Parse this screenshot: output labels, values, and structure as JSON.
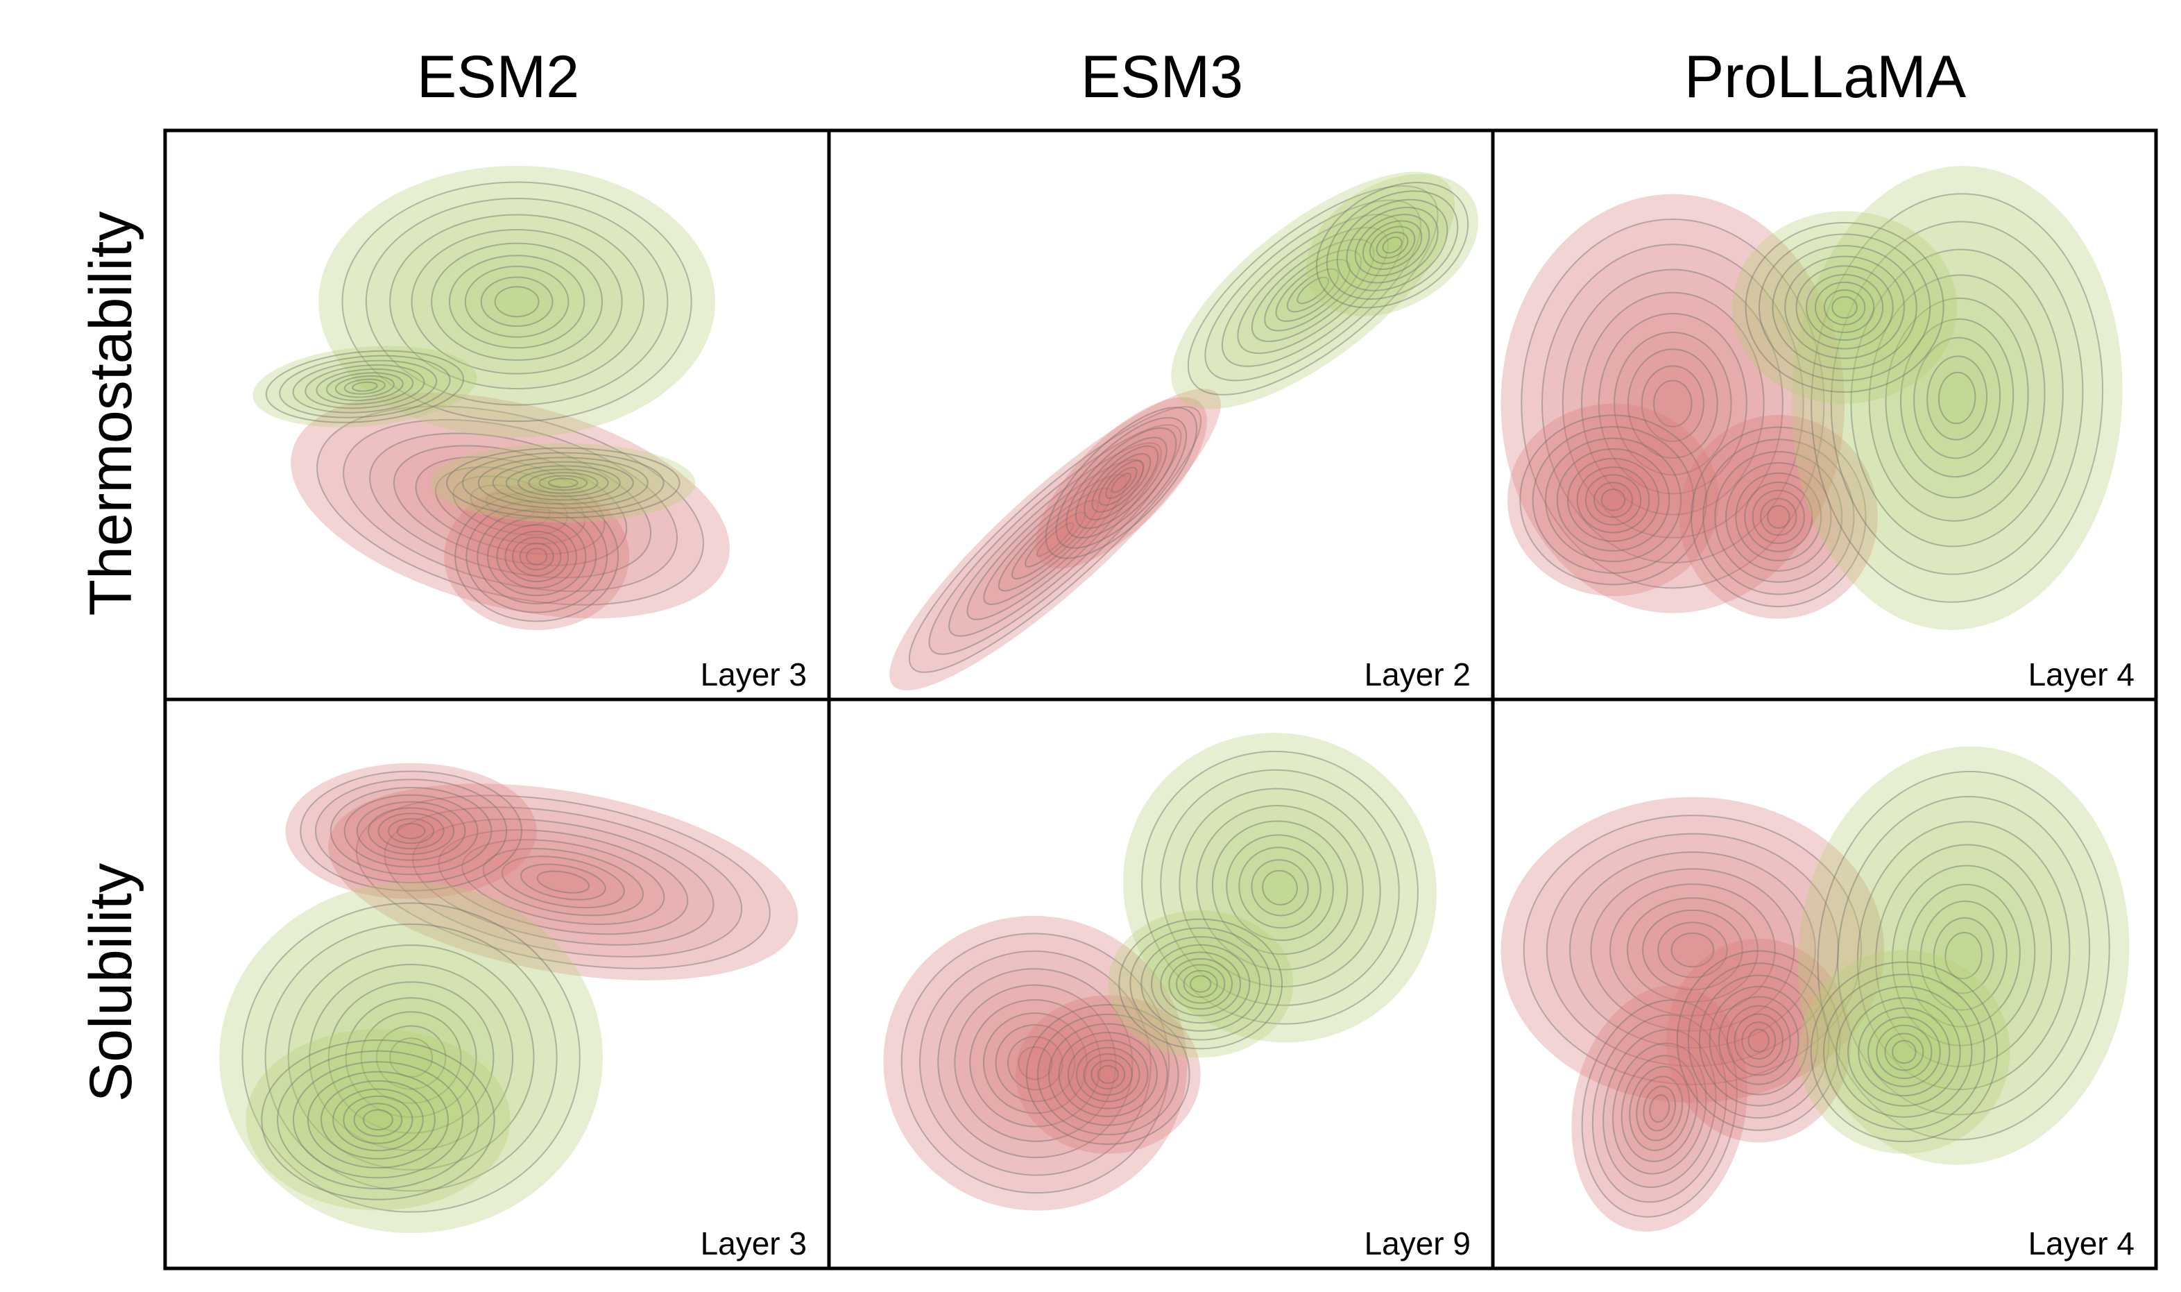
{
  "columns": [
    "ESM2",
    "ESM3",
    "ProLLaMA"
  ],
  "rows": [
    "Thermostability",
    "Solubility"
  ],
  "colors": {
    "red": "#d97a7a",
    "green": "#b5cd72",
    "line": "#6f6f6f"
  },
  "chart_data": {
    "type": "kde-contour-grid",
    "panels": [
      {
        "row": "Thermostability",
        "model": "ESM2",
        "layer_label": "Layer 3",
        "green": [
          {
            "cx": 0.53,
            "cy": 0.3,
            "rx": 0.3,
            "ry": 0.24,
            "rot": 0
          },
          {
            "cx": 0.6,
            "cy": 0.62,
            "rx": 0.2,
            "ry": 0.07,
            "rot": 0
          },
          {
            "cx": 0.3,
            "cy": 0.45,
            "rx": 0.17,
            "ry": 0.07,
            "rot": -5
          }
        ],
        "red": [
          {
            "cx": 0.52,
            "cy": 0.66,
            "rx": 0.34,
            "ry": 0.18,
            "rot": 14
          },
          {
            "cx": 0.56,
            "cy": 0.75,
            "rx": 0.14,
            "ry": 0.13,
            "rot": 0
          }
        ]
      },
      {
        "row": "Thermostability",
        "model": "ESM3",
        "layer_label": "Layer 2",
        "green": [
          {
            "cx": 0.73,
            "cy": 0.28,
            "rx": 0.26,
            "ry": 0.12,
            "rot": -38
          },
          {
            "cx": 0.85,
            "cy": 0.2,
            "rx": 0.14,
            "ry": 0.11,
            "rot": -30
          }
        ],
        "red": [
          {
            "cx": 0.34,
            "cy": 0.72,
            "rx": 0.33,
            "ry": 0.09,
            "rot": -42
          },
          {
            "cx": 0.44,
            "cy": 0.62,
            "rx": 0.17,
            "ry": 0.08,
            "rot": -45
          }
        ]
      },
      {
        "row": "Thermostability",
        "model": "ProLLaMA",
        "layer_label": "Layer 4",
        "red": [
          {
            "cx": 0.27,
            "cy": 0.48,
            "rx": 0.26,
            "ry": 0.37,
            "rot": 0
          },
          {
            "cx": 0.18,
            "cy": 0.65,
            "rx": 0.16,
            "ry": 0.17,
            "rot": 0
          },
          {
            "cx": 0.43,
            "cy": 0.68,
            "rx": 0.15,
            "ry": 0.18,
            "rot": 0
          }
        ],
        "green": [
          {
            "cx": 0.7,
            "cy": 0.47,
            "rx": 0.25,
            "ry": 0.41,
            "rot": 3
          },
          {
            "cx": 0.53,
            "cy": 0.31,
            "rx": 0.17,
            "ry": 0.17,
            "rot": 0
          }
        ]
      },
      {
        "row": "Solubility",
        "model": "ESM2",
        "layer_label": "Layer 3",
        "red": [
          {
            "cx": 0.6,
            "cy": 0.32,
            "rx": 0.36,
            "ry": 0.16,
            "rot": 10
          },
          {
            "cx": 0.37,
            "cy": 0.23,
            "rx": 0.19,
            "ry": 0.12,
            "rot": 0
          }
        ],
        "green": [
          {
            "cx": 0.37,
            "cy": 0.63,
            "rx": 0.29,
            "ry": 0.31,
            "rot": 0
          },
          {
            "cx": 0.32,
            "cy": 0.74,
            "rx": 0.2,
            "ry": 0.16,
            "rot": 0
          }
        ]
      },
      {
        "row": "Solubility",
        "model": "ESM3",
        "layer_label": "Layer 9",
        "red": [
          {
            "cx": 0.31,
            "cy": 0.64,
            "rx": 0.23,
            "ry": 0.26,
            "rot": 10
          },
          {
            "cx": 0.42,
            "cy": 0.66,
            "rx": 0.14,
            "ry": 0.14,
            "rot": 0
          }
        ],
        "green": [
          {
            "cx": 0.68,
            "cy": 0.33,
            "rx": 0.24,
            "ry": 0.27,
            "rot": 35
          },
          {
            "cx": 0.56,
            "cy": 0.5,
            "rx": 0.14,
            "ry": 0.13,
            "rot": 0
          }
        ]
      },
      {
        "row": "Solubility",
        "model": "ProLLaMA",
        "layer_label": "Layer 4",
        "red": [
          {
            "cx": 0.3,
            "cy": 0.44,
            "rx": 0.29,
            "ry": 0.27,
            "rot": 0
          },
          {
            "cx": 0.25,
            "cy": 0.72,
            "rx": 0.13,
            "ry": 0.22,
            "rot": 12
          },
          {
            "cx": 0.4,
            "cy": 0.6,
            "rx": 0.14,
            "ry": 0.18,
            "rot": 0
          }
        ],
        "green": [
          {
            "cx": 0.71,
            "cy": 0.45,
            "rx": 0.25,
            "ry": 0.37,
            "rot": 5
          },
          {
            "cx": 0.62,
            "cy": 0.62,
            "rx": 0.16,
            "ry": 0.18,
            "rot": 0
          }
        ]
      }
    ]
  }
}
